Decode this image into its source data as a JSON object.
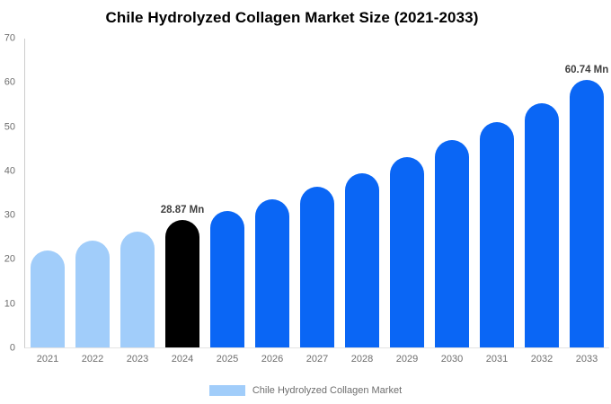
{
  "title": "Chile Hydrolyzed Collagen Market Size (2021-2033)",
  "legend": {
    "label": "Chile Hydrolyzed Collagen Market",
    "swatch_color": "#A1CDFA"
  },
  "colors": {
    "past": "#A1CDFA",
    "current": "#000000",
    "forecast": "#0A66F5",
    "axis_line": "#cccccc",
    "baseline": "#e4e4e4",
    "tick_text": "#6e6e6e",
    "value_label": "#404040"
  },
  "chart_data": {
    "type": "bar",
    "title": "Chile Hydrolyzed Collagen Market Size (2021-2033)",
    "xlabel": "",
    "ylabel": "",
    "categories": [
      "2021",
      "2022",
      "2023",
      "2024",
      "2025",
      "2026",
      "2027",
      "2028",
      "2029",
      "2030",
      "2031",
      "2032",
      "2033"
    ],
    "values": [
      22,
      24.2,
      26.3,
      28.87,
      31,
      33.6,
      36.5,
      39.5,
      43.1,
      47,
      51,
      55.4,
      60.74
    ],
    "bar_styles": [
      "past",
      "past",
      "past",
      "current",
      "forecast",
      "forecast",
      "forecast",
      "forecast",
      "forecast",
      "forecast",
      "forecast",
      "forecast",
      "forecast"
    ],
    "bar_labels": [
      "",
      "",
      "",
      "28.87 Mn",
      "",
      "",
      "",
      "",
      "",
      "",
      "",
      "",
      "60.74 Mn"
    ],
    "unit": "Mn",
    "ylim": [
      0,
      70
    ],
    "yticks": [
      0,
      10,
      20,
      30,
      40,
      50,
      60,
      70
    ],
    "grid": false,
    "legend_position": "bottom",
    "series": [
      {
        "name": "Chile Hydrolyzed Collagen Market",
        "values": [
          22,
          24.2,
          26.3,
          28.87,
          31,
          33.6,
          36.5,
          39.5,
          43.1,
          47,
          51,
          55.4,
          60.74
        ]
      }
    ]
  }
}
